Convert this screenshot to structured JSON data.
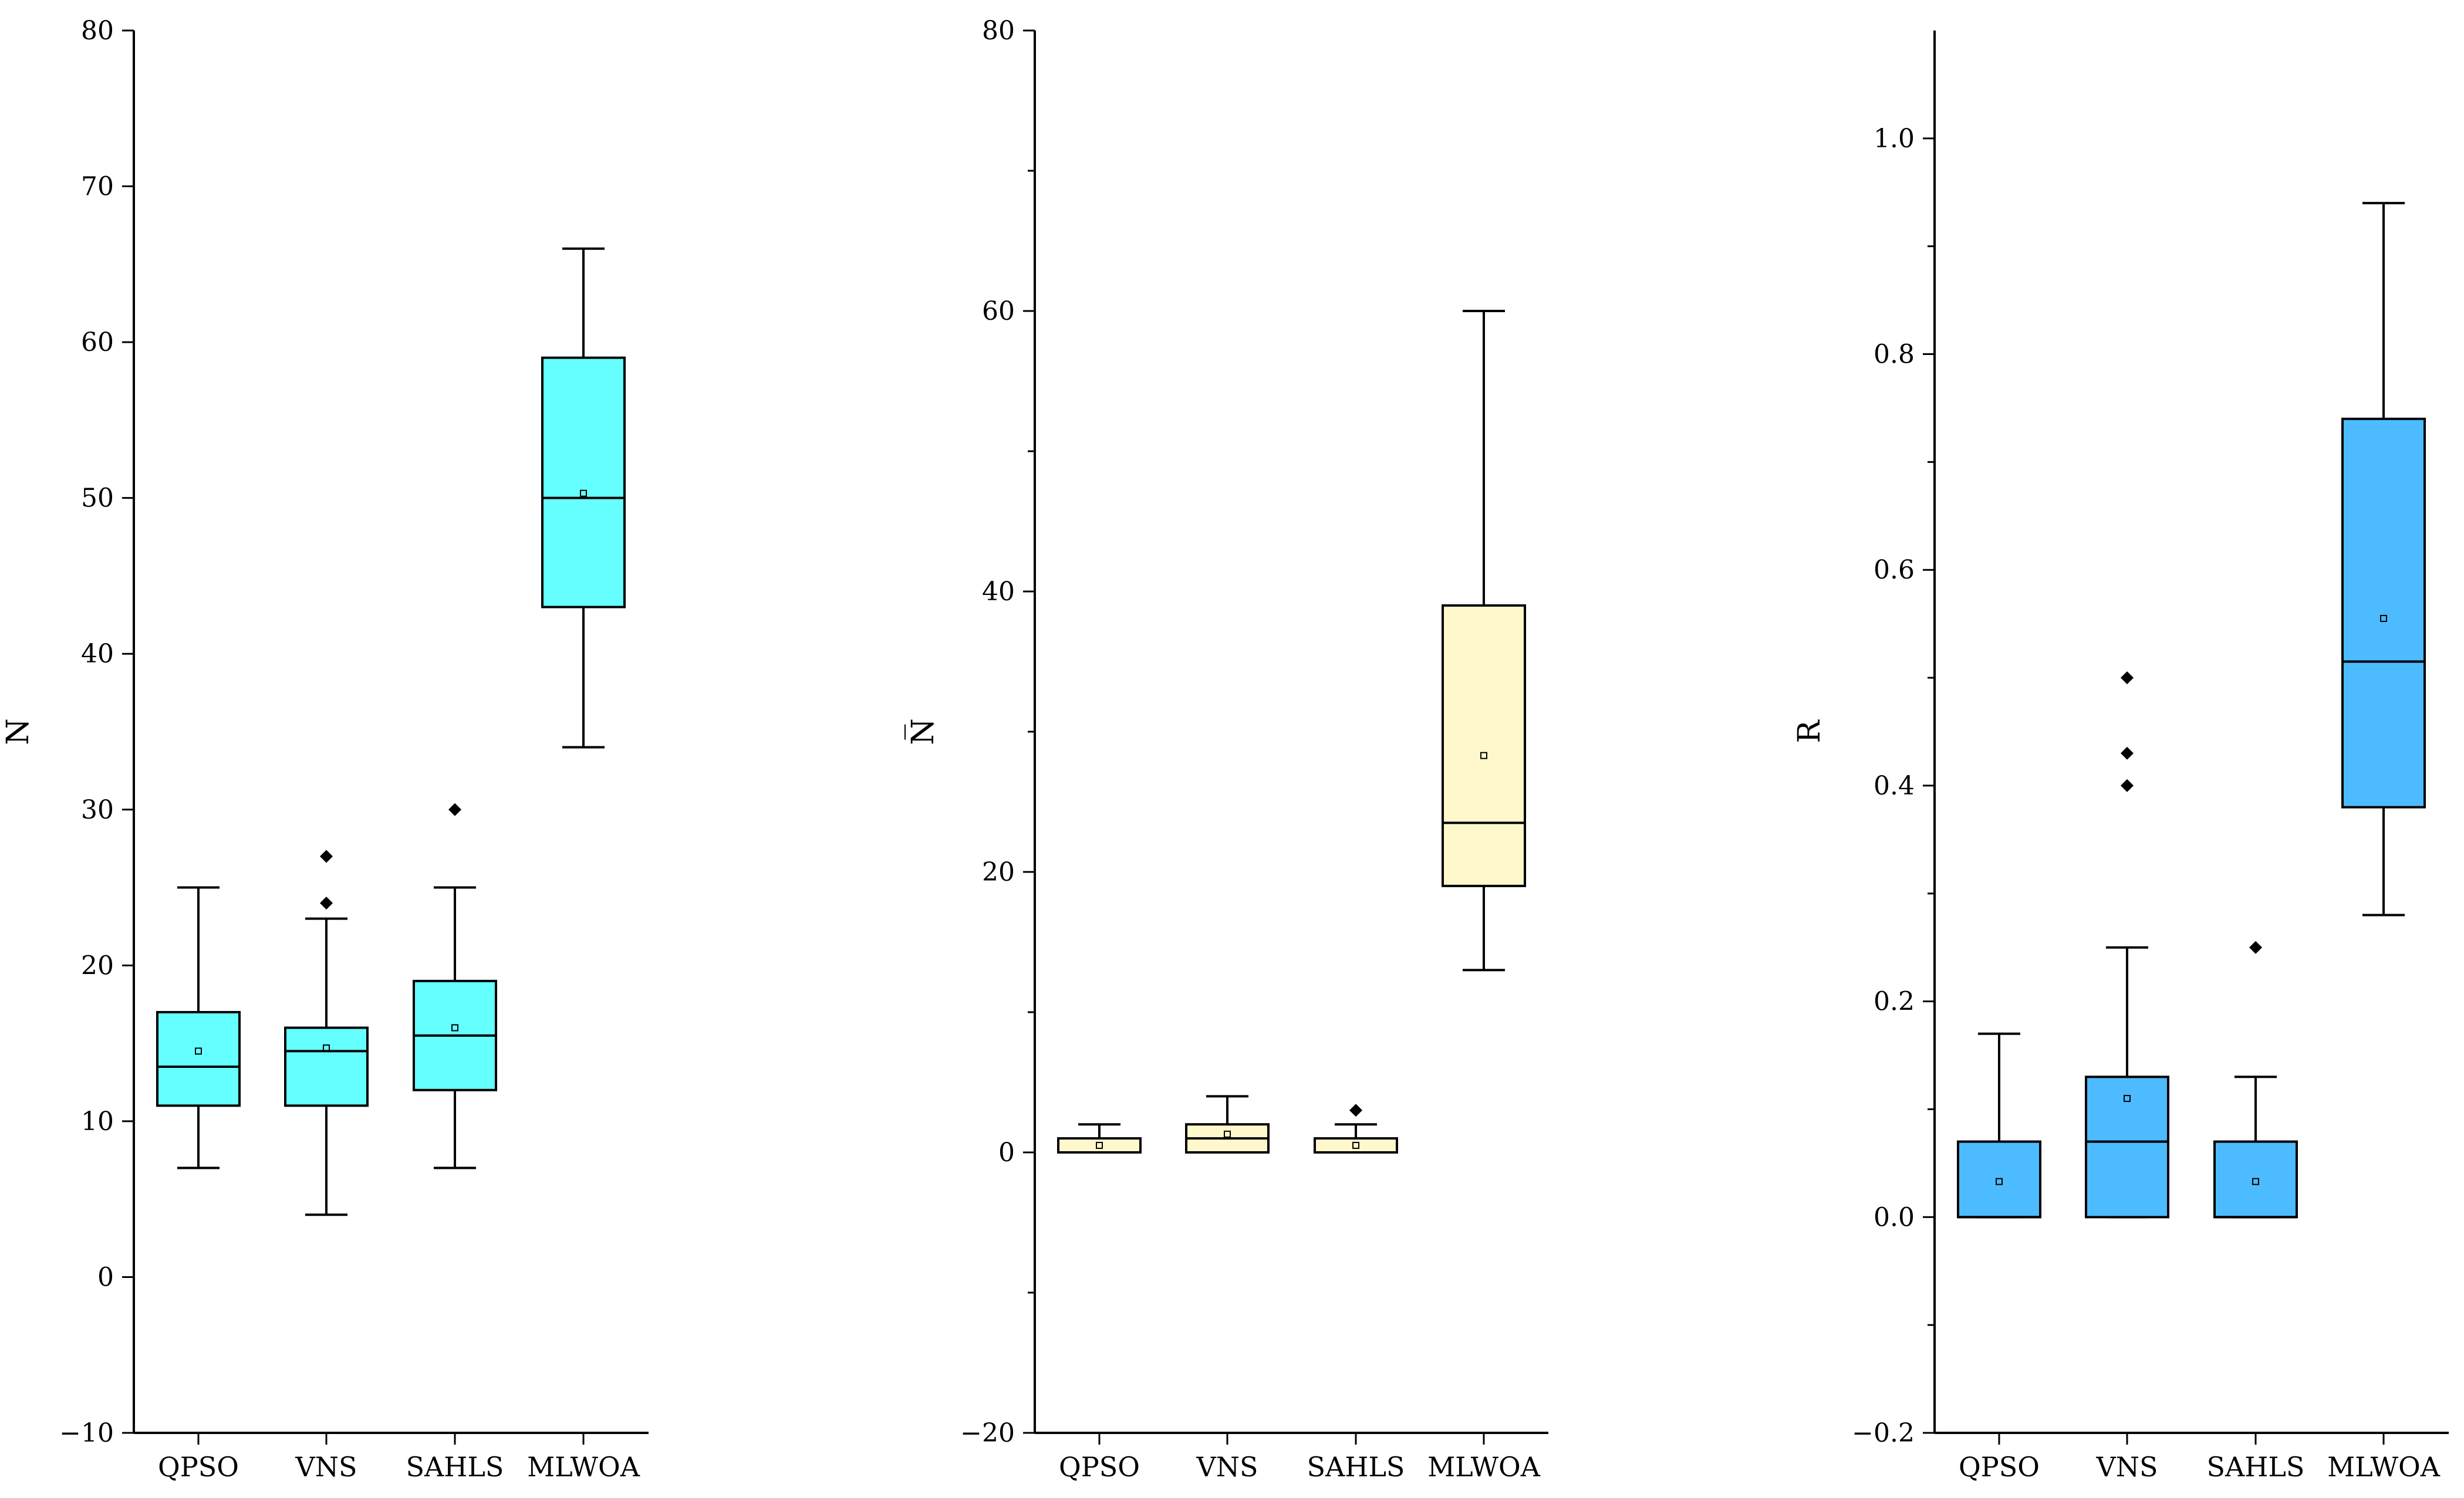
{
  "chart_data": [
    {
      "type": "box",
      "ylabel": "N",
      "ylim": [
        -10,
        80
      ],
      "yticks": [
        -10,
        0,
        10,
        20,
        30,
        40,
        50,
        60,
        70,
        80
      ],
      "ytick_labels": [
        "−10",
        "0",
        "10",
        "20",
        "30",
        "40",
        "50",
        "60",
        "70",
        "80"
      ],
      "minor_ticks": false,
      "color": "#66FFFF",
      "categories": [
        "QPSO",
        "VNS",
        "SAHLS",
        "MLWOA"
      ],
      "boxes": [
        {
          "whisker_low": 7,
          "q1": 11,
          "median": 13.5,
          "q3": 17,
          "whisker_high": 25,
          "mean": 14.5,
          "outliers": []
        },
        {
          "whisker_low": 4,
          "q1": 11,
          "median": 14.5,
          "q3": 16,
          "whisker_high": 23,
          "mean": 14.7,
          "outliers": [
            24,
            27
          ]
        },
        {
          "whisker_low": 7,
          "q1": 12,
          "median": 15.5,
          "q3": 19,
          "whisker_high": 25,
          "mean": 16,
          "outliers": [
            30
          ]
        },
        {
          "whisker_low": 34,
          "q1": 43,
          "median": 50,
          "q3": 59,
          "whisker_high": 66,
          "mean": 50.3,
          "outliers": []
        }
      ]
    },
    {
      "type": "box",
      "ylabel": "N̅",
      "ylim": [
        -20,
        80
      ],
      "yticks": [
        -20,
        0,
        20,
        40,
        60,
        80
      ],
      "ytick_labels": [
        "−20",
        "0",
        "20",
        "40",
        "60",
        "80"
      ],
      "minor_ticks": true,
      "color": "#FFF8CC",
      "categories": [
        "QPSO",
        "VNS",
        "SAHLS",
        "MLWOA"
      ],
      "boxes": [
        {
          "whisker_low": 0,
          "q1": 0,
          "median": 0,
          "q3": 1,
          "whisker_high": 2,
          "mean": 0.5,
          "outliers": []
        },
        {
          "whisker_low": 0,
          "q1": 0,
          "median": 1,
          "q3": 2,
          "whisker_high": 4,
          "mean": 1.3,
          "outliers": []
        },
        {
          "whisker_low": 0,
          "q1": 0,
          "median": 0,
          "q3": 1,
          "whisker_high": 2,
          "mean": 0.5,
          "outliers": [
            3
          ]
        },
        {
          "whisker_low": 13,
          "q1": 19,
          "median": 23.5,
          "q3": 39,
          "whisker_high": 60,
          "mean": 28.3,
          "outliers": []
        }
      ]
    },
    {
      "type": "box",
      "ylabel": "R",
      "ylim": [
        -0.2,
        1.1
      ],
      "yticks": [
        -0.2,
        0,
        0.2,
        0.4,
        0.6,
        0.8,
        1.0
      ],
      "ytick_labels": [
        "−0.2",
        "0.0",
        "0.2",
        "0.4",
        "0.6",
        "0.8",
        "1.0"
      ],
      "minor_ticks": true,
      "color": "#4DBBFF",
      "categories": [
        "QPSO",
        "VNS",
        "SAHLS",
        "MLWOA"
      ],
      "boxes": [
        {
          "whisker_low": 0,
          "q1": 0,
          "median": 0,
          "q3": 0.07,
          "whisker_high": 0.17,
          "mean": 0.033,
          "outliers": []
        },
        {
          "whisker_low": 0,
          "q1": 0,
          "median": 0.07,
          "q3": 0.13,
          "whisker_high": 0.25,
          "mean": 0.11,
          "outliers": [
            0.4,
            0.43,
            0.5
          ]
        },
        {
          "whisker_low": 0,
          "q1": 0,
          "median": 0,
          "q3": 0.07,
          "whisker_high": 0.13,
          "mean": 0.033,
          "outliers": [
            0.25
          ]
        },
        {
          "whisker_low": 0.28,
          "q1": 0.38,
          "median": 0.515,
          "q3": 0.74,
          "whisker_high": 0.94,
          "mean": 0.555,
          "outliers": []
        }
      ]
    }
  ]
}
